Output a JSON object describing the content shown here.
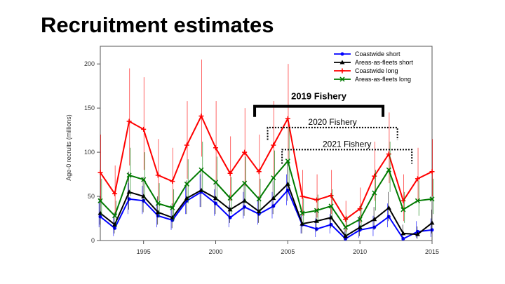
{
  "slide": {
    "title": "Recruitment estimates"
  },
  "chart_data": {
    "type": "line",
    "title": "",
    "xlabel": "",
    "ylabel": "Age-0 recruits (millions)",
    "xlim": [
      1992,
      2015
    ],
    "ylim": [
      0,
      220
    ],
    "x_ticks": [
      1995,
      2000,
      2005,
      2010,
      2015
    ],
    "y_ticks": [
      0,
      50,
      100,
      150,
      200
    ],
    "grid": false,
    "legend_position": "top-right",
    "x": [
      1992,
      1993,
      1994,
      1995,
      1996,
      1997,
      1998,
      1999,
      2000,
      2001,
      2002,
      2003,
      2004,
      2005,
      2006,
      2007,
      2008,
      2009,
      2010,
      2011,
      2012,
      2013,
      2014,
      2015
    ],
    "series": [
      {
        "name": "Coastwide short",
        "color": "#0000ff",
        "marker": "circle",
        "values": [
          27,
          14,
          47,
          45,
          28,
          23,
          45,
          55,
          42,
          26,
          38,
          30,
          39,
          57,
          18,
          13,
          18,
          2,
          12,
          15,
          27,
          2,
          10,
          12
        ],
        "lower": [
          15,
          5,
          30,
          30,
          15,
          12,
          30,
          38,
          28,
          15,
          25,
          18,
          25,
          40,
          8,
          4,
          8,
          0,
          3,
          5,
          15,
          0,
          3,
          4
        ],
        "upper": [
          45,
          28,
          65,
          62,
          42,
          38,
          62,
          75,
          58,
          40,
          55,
          45,
          55,
          75,
          30,
          25,
          30,
          10,
          25,
          28,
          42,
          8,
          22,
          25
        ]
      },
      {
        "name": "Areas-as-fleets short",
        "color": "#000000",
        "marker": "triangle",
        "values": [
          31,
          18,
          55,
          50,
          32,
          26,
          48,
          57,
          48,
          35,
          45,
          33,
          48,
          64,
          19,
          22,
          26,
          5,
          15,
          24,
          37,
          8,
          7,
          20
        ],
        "lower": [
          18,
          8,
          35,
          32,
          18,
          14,
          30,
          38,
          30,
          20,
          28,
          20,
          30,
          45,
          8,
          10,
          14,
          1,
          5,
          12,
          22,
          2,
          2,
          8
        ],
        "upper": [
          50,
          32,
          78,
          72,
          50,
          42,
          68,
          80,
          68,
          52,
          65,
          50,
          68,
          88,
          32,
          36,
          40,
          15,
          28,
          38,
          55,
          18,
          16,
          35
        ]
      },
      {
        "name": "Coastwide long",
        "color": "#ff0000",
        "marker": "plus",
        "values": [
          77,
          53,
          135,
          126,
          74,
          67,
          108,
          141,
          105,
          76,
          100,
          78,
          108,
          138,
          50,
          46,
          51,
          24,
          36,
          73,
          98,
          45,
          70,
          78
        ],
        "lower": [
          45,
          30,
          85,
          80,
          45,
          40,
          70,
          95,
          68,
          45,
          62,
          48,
          70,
          92,
          28,
          26,
          30,
          10,
          20,
          45,
          65,
          22,
          45,
          50
        ],
        "upper": [
          120,
          85,
          195,
          185,
          115,
          105,
          158,
          205,
          158,
          118,
          150,
          120,
          158,
          200,
          80,
          75,
          80,
          45,
          60,
          112,
          145,
          75,
          105,
          115
        ]
      },
      {
        "name": "Areas-as-fleets long",
        "color": "#007a00",
        "marker": "x",
        "values": [
          45,
          28,
          74,
          69,
          42,
          37,
          64,
          80,
          66,
          48,
          65,
          47,
          71,
          90,
          31,
          34,
          39,
          15,
          24,
          54,
          80,
          35,
          45,
          47
        ],
        "lower": [
          28,
          15,
          50,
          45,
          26,
          22,
          42,
          55,
          44,
          30,
          42,
          30,
          48,
          62,
          18,
          20,
          24,
          6,
          12,
          34,
          55,
          20,
          28,
          30
        ],
        "upper": [
          70,
          45,
          105,
          100,
          65,
          58,
          92,
          112,
          95,
          72,
          95,
          70,
          102,
          128,
          48,
          52,
          58,
          28,
          40,
          80,
          112,
          55,
          68,
          70
        ]
      }
    ],
    "annotations": [
      {
        "label": "2019 Fishery",
        "style": "bold-bracket",
        "from": 2002.7,
        "to": 2011.6,
        "y": 152,
        "drop": 12
      },
      {
        "label": "2020 Fishery",
        "style": "dotted-bracket",
        "from": 2003.6,
        "to": 2012.6,
        "y": 128,
        "drop": 14
      },
      {
        "label": "2021 Fishery",
        "style": "dotted-bracket",
        "from": 2004.6,
        "to": 2013.6,
        "y": 103,
        "drop": 16
      }
    ]
  }
}
